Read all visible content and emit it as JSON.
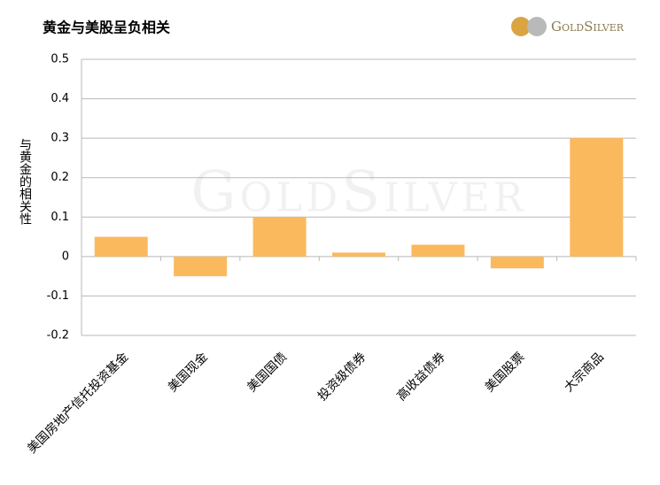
{
  "chart_data": {
    "type": "bar",
    "title": "黄金与美股呈负相关",
    "y_label": "与黄金的相关性",
    "logo": "GoldSilver",
    "categories": [
      "美国房地产信托投资基金",
      "美国现金",
      "美国国债",
      "投资级债券",
      "高收益债券",
      "美国股票",
      "大宗商品"
    ],
    "values": [
      0.05,
      -0.05,
      0.1,
      0.01,
      0.03,
      -0.03,
      0.3
    ],
    "color": "#fbb95e",
    "ylim": [
      -0.2,
      0.5
    ],
    "yticks": [
      -0.2,
      -0.1,
      0,
      0.1,
      0.2,
      0.3,
      0.4,
      0.5
    ],
    "grid": true
  }
}
